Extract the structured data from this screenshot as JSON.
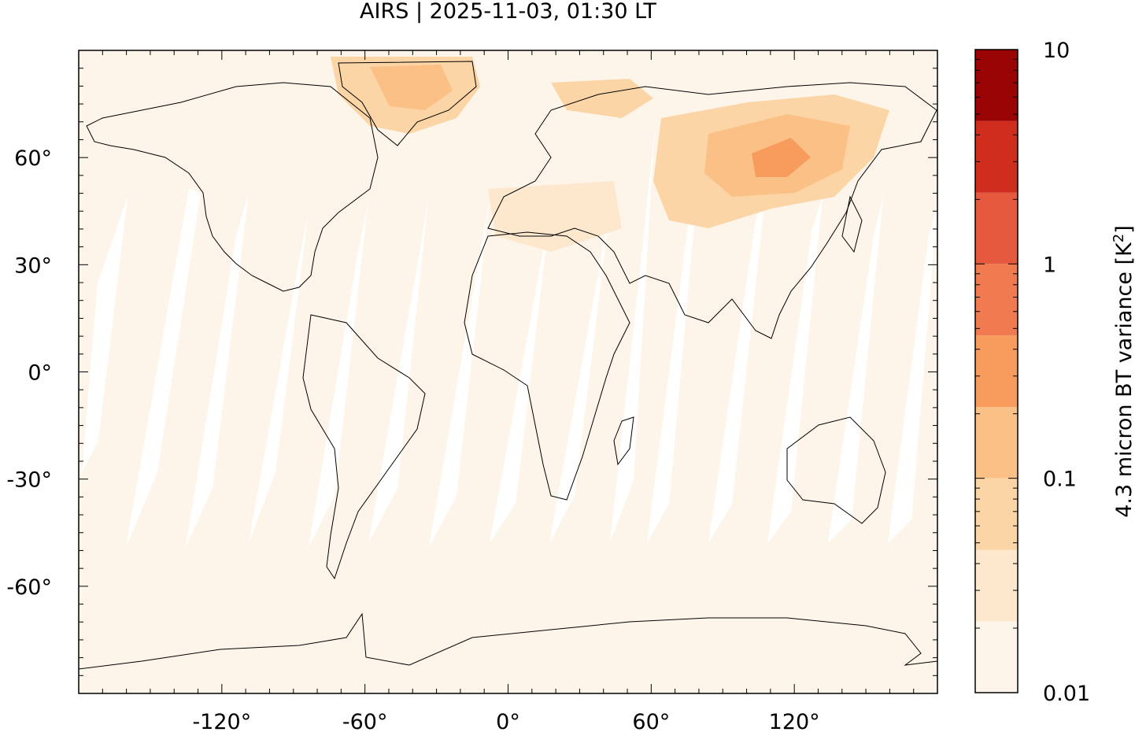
{
  "title": "AIRS | 2025-11-03, 01:30 LT",
  "map": {
    "lon_range": [
      -180,
      180
    ],
    "lat_range": [
      -90,
      90
    ],
    "lon_ticks": [
      {
        "value": -120,
        "label": "-120°"
      },
      {
        "value": -60,
        "label": "-60°"
      },
      {
        "value": 0,
        "label": "0°"
      },
      {
        "value": 60,
        "label": "60°"
      },
      {
        "value": 120,
        "label": "120°"
      }
    ],
    "lat_ticks": [
      {
        "value": 60,
        "label": "60°"
      },
      {
        "value": 30,
        "label": "30°"
      },
      {
        "value": 0,
        "label": "0°"
      },
      {
        "value": -30,
        "label": "-30°"
      },
      {
        "value": -60,
        "label": "-60°"
      }
    ],
    "background_color": "#fef5ea"
  },
  "colorbar": {
    "label": "4.3 micron BT variance [K",
    "label_sup": "2",
    "label_end": "]",
    "scale": "log",
    "range": [
      0.01,
      10
    ],
    "tick_labels": [
      {
        "value": 10,
        "label": "10"
      },
      {
        "value": 1,
        "label": "1"
      },
      {
        "value": 0.1,
        "label": "0.1"
      },
      {
        "value": 0.01,
        "label": "0.01"
      }
    ],
    "levels": [
      0.01,
      0.0215,
      0.0464,
      0.1,
      0.215,
      0.464,
      1,
      2.15,
      4.64,
      10
    ],
    "colors": [
      "#fef5ea",
      "#fde7cd",
      "#fcd5a6",
      "#fbc086",
      "#f89c5e",
      "#f07b51",
      "#e55a3f",
      "#cf2d1e",
      "#9b0404"
    ]
  }
}
